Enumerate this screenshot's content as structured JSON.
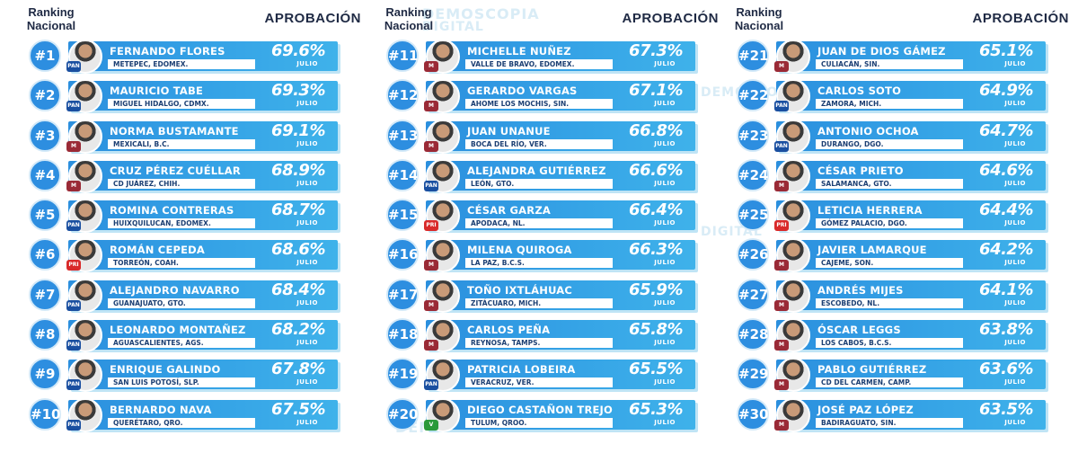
{
  "header": {
    "rank_label_line1": "Ranking",
    "rank_label_line2": "Nacional",
    "approval_label": "APROBACIÓN"
  },
  "watermark": {
    "line1": "DEMOSCOPIA",
    "line2": "DIGITAL",
    "line3": "DEMOSCOPIA"
  },
  "columns": [
    {
      "rows": [
        {
          "rank": "#1",
          "name": "FERNANDO FLORES",
          "place": "METEPEC, EDOMEX.",
          "approval": "69.6%",
          "month": "JULIO",
          "party": "PAN"
        },
        {
          "rank": "#2",
          "name": "MAURICIO TABE",
          "place": "MIGUEL HIDALGO, CDMX.",
          "approval": "69.3%",
          "month": "JULIO",
          "party": "PAN"
        },
        {
          "rank": "#3",
          "name": "NORMA BUSTAMANTE",
          "place": "MEXICALI, B.C.",
          "approval": "69.1%",
          "month": "JULIO",
          "party": "MORENA"
        },
        {
          "rank": "#4",
          "name": "CRUZ PÉREZ CUÉLLAR",
          "place": "CD JUÁREZ, CHIH.",
          "approval": "68.9%",
          "month": "JULIO",
          "party": "MORENA"
        },
        {
          "rank": "#5",
          "name": "ROMINA CONTRERAS",
          "place": "HUIXQUILUCAN, EDOMEX.",
          "approval": "68.7%",
          "month": "JULIO",
          "party": "PAN"
        },
        {
          "rank": "#6",
          "name": "ROMÁN CEPEDA",
          "place": "TORREÓN, COAH.",
          "approval": "68.6%",
          "month": "JULIO",
          "party": "PRI"
        },
        {
          "rank": "#7",
          "name": "ALEJANDRO NAVARRO",
          "place": "GUANAJUATO, GTO.",
          "approval": "68.4%",
          "month": "JULIO",
          "party": "PAN"
        },
        {
          "rank": "#8",
          "name": "LEONARDO MONTAÑEZ",
          "place": "AGUASCALIENTES, AGS.",
          "approval": "68.2%",
          "month": "JULIO",
          "party": "PAN"
        },
        {
          "rank": "#9",
          "name": "ENRIQUE GALINDO",
          "place": "SAN LUIS POTOSÍ, SLP.",
          "approval": "67.8%",
          "month": "JULIO",
          "party": "PAN"
        },
        {
          "rank": "#10",
          "name": "BERNARDO NAVA",
          "place": "QUERÉTARO, QRO.",
          "approval": "67.5%",
          "month": "JULIO",
          "party": "PAN"
        }
      ]
    },
    {
      "rows": [
        {
          "rank": "#11",
          "name": "MICHELLE NUÑEZ",
          "place": "VALLE DE BRAVO, EDOMEX.",
          "approval": "67.3%",
          "month": "JULIO",
          "party": "MORENA"
        },
        {
          "rank": "#12",
          "name": "GERARDO VARGAS",
          "place": "AHOME LOS MOCHIS, SIN.",
          "approval": "67.1%",
          "month": "JULIO",
          "party": "MORENA"
        },
        {
          "rank": "#13",
          "name": "JUAN UNANUE",
          "place": "BOCA DEL RÍO, VER.",
          "approval": "66.8%",
          "month": "JULIO",
          "party": "MORENA"
        },
        {
          "rank": "#14",
          "name": "ALEJANDRA GUTIÉRREZ",
          "place": "LEÓN, GTO.",
          "approval": "66.6%",
          "month": "JULIO",
          "party": "PAN"
        },
        {
          "rank": "#15",
          "name": "CÉSAR GARZA",
          "place": "APODACA, NL.",
          "approval": "66.4%",
          "month": "JULIO",
          "party": "PRI"
        },
        {
          "rank": "#16",
          "name": "MILENA QUIROGA",
          "place": "LA PAZ, B.C.S.",
          "approval": "66.3%",
          "month": "JULIO",
          "party": "MORENA"
        },
        {
          "rank": "#17",
          "name": "TOÑO IXTLÁHUAC",
          "place": "ZITÁCUARO, MICH.",
          "approval": "65.9%",
          "month": "JULIO",
          "party": "MORENA"
        },
        {
          "rank": "#18",
          "name": "CARLOS PEÑA",
          "place": "REYNOSA, TAMPS.",
          "approval": "65.8%",
          "month": "JULIO",
          "party": "MORENA"
        },
        {
          "rank": "#19",
          "name": "PATRICIA LOBEIRA",
          "place": "VERACRUZ, VER.",
          "approval": "65.5%",
          "month": "JULIO",
          "party": "PAN"
        },
        {
          "rank": "#20",
          "name": "DIEGO CASTAÑON TREJO",
          "place": "TULUM, QROO.",
          "approval": "65.3%",
          "month": "JULIO",
          "party": "PVEM"
        }
      ]
    },
    {
      "rows": [
        {
          "rank": "#21",
          "name": "JUAN DE DIOS GÁMEZ",
          "place": "CULIACÁN, SIN.",
          "approval": "65.1%",
          "month": "JULIO",
          "party": "MORENA"
        },
        {
          "rank": "#22",
          "name": "CARLOS SOTO",
          "place": "ZAMORA, MICH.",
          "approval": "64.9%",
          "month": "JULIO",
          "party": "PAN"
        },
        {
          "rank": "#23",
          "name": "ANTONIO OCHOA",
          "place": "DURANGO, DGO.",
          "approval": "64.7%",
          "month": "JULIO",
          "party": "PAN"
        },
        {
          "rank": "#24",
          "name": "CÉSAR PRIETO",
          "place": "SALAMANCA, GTO.",
          "approval": "64.6%",
          "month": "JULIO",
          "party": "MORENA"
        },
        {
          "rank": "#25",
          "name": "LETICIA HERRERA",
          "place": "GÓMEZ PALACIO, DGO.",
          "approval": "64.4%",
          "month": "JULIO",
          "party": "PRI"
        },
        {
          "rank": "#26",
          "name": "JAVIER LAMARQUE",
          "place": "CAJEME, SON.",
          "approval": "64.2%",
          "month": "JULIO",
          "party": "MORENA"
        },
        {
          "rank": "#27",
          "name": "ANDRÉS MIJES",
          "place": "ESCOBEDO, NL.",
          "approval": "64.1%",
          "month": "JULIO",
          "party": "MORENA"
        },
        {
          "rank": "#28",
          "name": "ÓSCAR LEGGS",
          "place": "LOS CABOS, B.C.S.",
          "approval": "63.8%",
          "month": "JULIO",
          "party": "MORENA"
        },
        {
          "rank": "#29",
          "name": "PABLO GUTIÉRREZ",
          "place": "CD DEL CARMEN, CAMP.",
          "approval": "63.6%",
          "month": "JULIO",
          "party": "MORENA"
        },
        {
          "rank": "#30",
          "name": "JOSÉ PAZ LÓPEZ",
          "place": "BADIRAGUATO, SIN.",
          "approval": "63.5%",
          "month": "JULIO",
          "party": "MORENA"
        }
      ]
    }
  ],
  "colors": {
    "badge": "#2d8ee0",
    "bar_start": "#2b8fde",
    "bar_end": "#3fb2ea",
    "heading": "#1f2a44",
    "place_text": "#1c3f73"
  }
}
